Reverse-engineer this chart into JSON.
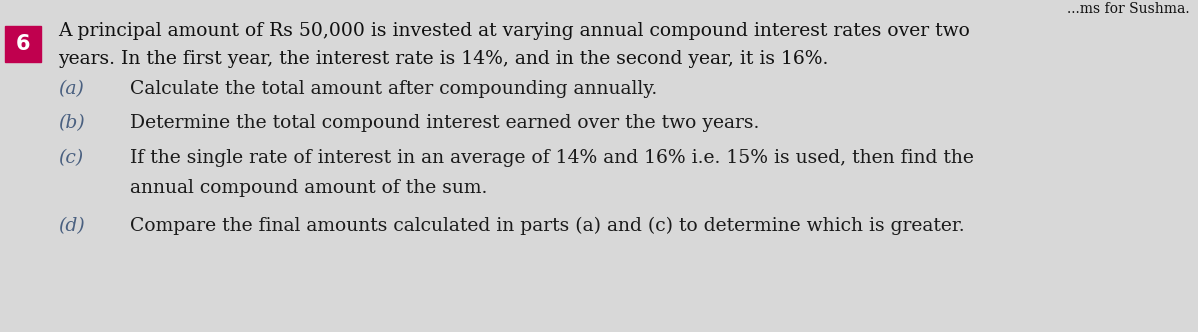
{
  "background_color": "#d8d8d8",
  "number_box_color": "#c0004e",
  "number_box_text": "6",
  "number_box_text_color": "#ffffff",
  "header_line1": "A principal amount of Rs 50,000 is invested at varying annual compound interest rates over two",
  "header_line2": "years. In the first year, the interest rate is 14%, and in the second year, it is 16%.",
  "top_right_text": "...ms for Sushma.",
  "items": [
    {
      "label": "(a)",
      "text": "Calculate the total amount after compounding annually."
    },
    {
      "label": "(b)",
      "text": "Determine the total compound interest earned over the two years."
    },
    {
      "label": "(c)",
      "text": "If the single rate of interest in an average of 14% and 16% i.e. 15% is used, then find the",
      "text2": "annual compound amount of the sum."
    },
    {
      "label": "(d)",
      "text": "Compare the final amounts calculated in parts (a) and (c) to determine which is greater."
    }
  ],
  "font_size_header": 13.5,
  "font_size_items": 13.5,
  "label_color": "#4a6080",
  "text_color": "#1a1a1a",
  "header_color": "#111111",
  "number_fontsize": 15
}
